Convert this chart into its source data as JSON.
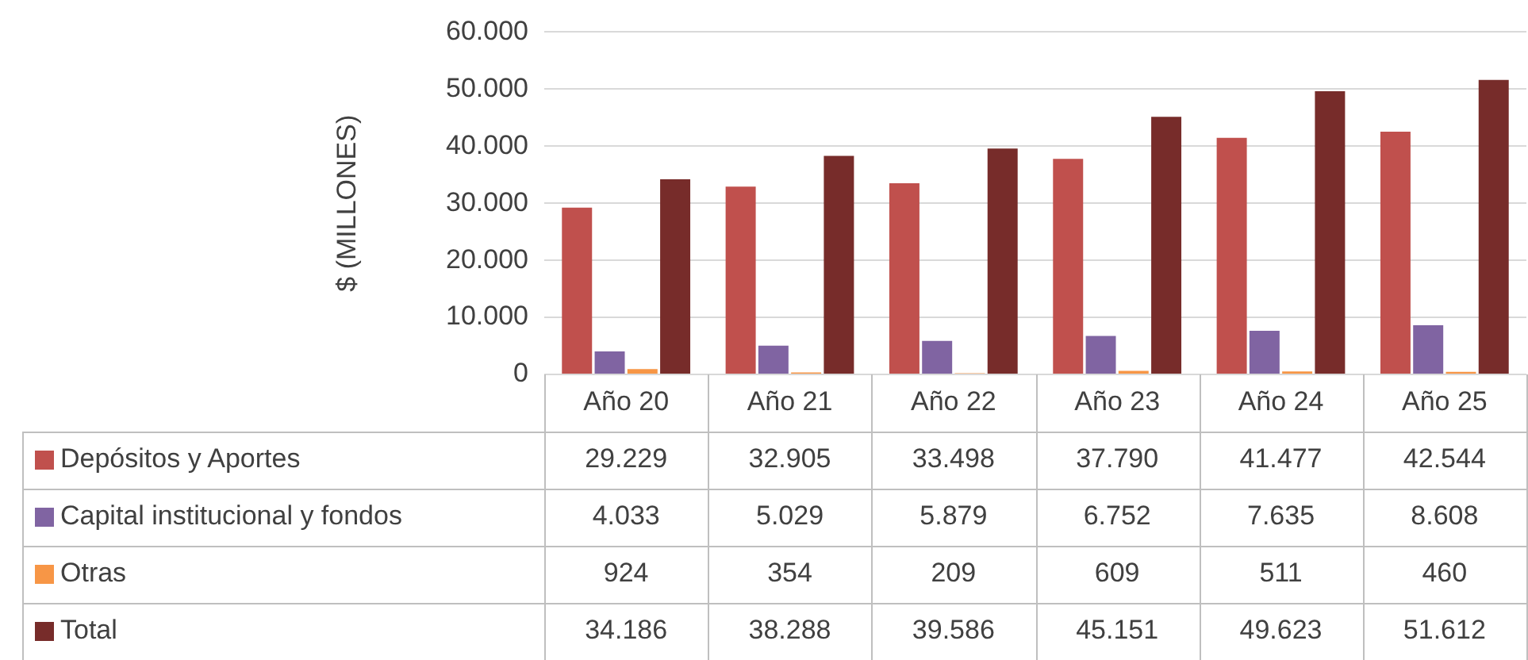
{
  "chart_data": {
    "type": "bar",
    "ylabel": "$ (MILLONES)",
    "categories": [
      "Año 20",
      "Año 21",
      "Año 22",
      "Año 23",
      "Año 24",
      "Año 25"
    ],
    "series": [
      {
        "name": "Depósitos y Aportes",
        "color": "#c0504d",
        "values": [
          29229,
          32905,
          33498,
          37790,
          41477,
          42544
        ],
        "value_labels": [
          "29.229",
          "32.905",
          "33.498",
          "37.790",
          "41.477",
          "42.544"
        ]
      },
      {
        "name": "Capital institucional y fondos",
        "color": "#8064a2",
        "values": [
          4033,
          5029,
          5879,
          6752,
          7635,
          8608
        ],
        "value_labels": [
          "4.033",
          "5.029",
          "5.879",
          "6.752",
          "7.635",
          "8.608"
        ]
      },
      {
        "name": "Otras",
        "color": "#f79646",
        "values": [
          924,
          354,
          209,
          609,
          511,
          460
        ],
        "value_labels": [
          "924",
          "354",
          "209",
          "609",
          "511",
          "460"
        ]
      },
      {
        "name": "Total",
        "color": "#772c2a",
        "values": [
          34186,
          38288,
          39586,
          45151,
          49623,
          51612
        ],
        "value_labels": [
          "34.186",
          "38.288",
          "39.586",
          "45.151",
          "49.623",
          "51.612"
        ]
      }
    ],
    "ylim": [
      0,
      60000
    ],
    "yticks": [
      0,
      {
        "value": 10000,
        "label": "10.000"
      },
      {
        "value": 20000,
        "label": "20.000"
      },
      {
        "value": 30000,
        "label": "30.000"
      },
      {
        "value": 40000,
        "label": "40.000"
      },
      {
        "value": 50000,
        "label": "50.000"
      },
      {
        "value": 60000,
        "label": "60.000"
      }
    ],
    "grid": "y",
    "legend": "bottom"
  }
}
